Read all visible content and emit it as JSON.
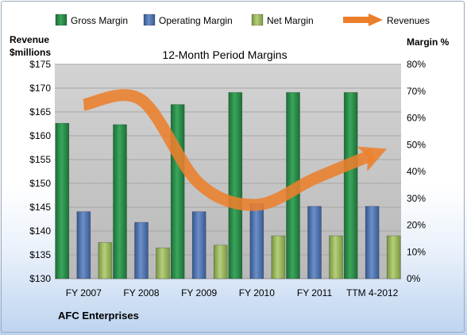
{
  "chart_data": {
    "type": "bar",
    "title": "12-Month Period Margins",
    "company": "AFC Enterprises",
    "left_axis": {
      "label_lines": [
        "Revenue",
        "$millions"
      ],
      "min": 130,
      "max": 175,
      "step": 5,
      "prefix": "$"
    },
    "right_axis": {
      "label": "Margin %",
      "min": 0,
      "max": 80,
      "step": 10,
      "suffix": "%"
    },
    "categories": [
      "FY 2007",
      "FY 2008",
      "FY 2009",
      "FY 2010",
      "FY 2011",
      "TTM 4-2012"
    ],
    "series": [
      {
        "name": "Gross Margin",
        "axis": "right",
        "values": [
          58,
          57.5,
          65,
          69.5,
          69.5,
          69.5
        ],
        "color": "#2e8b4a"
      },
      {
        "name": "Operating Margin",
        "axis": "right",
        "values": [
          25,
          21,
          25,
          28,
          27,
          27
        ],
        "color": "#4e73ad"
      },
      {
        "name": "Net Margin",
        "axis": "right",
        "values": [
          13.5,
          11.5,
          12.5,
          16,
          16,
          16
        ],
        "color": "#9ab85a"
      },
      {
        "name": "Revenues",
        "axis": "left",
        "type": "line",
        "values": [
          166.5,
          167.5,
          150,
          145.5,
          151,
          156
        ],
        "color": "#ec7f2c"
      }
    ],
    "grid": true,
    "legend": "top"
  }
}
